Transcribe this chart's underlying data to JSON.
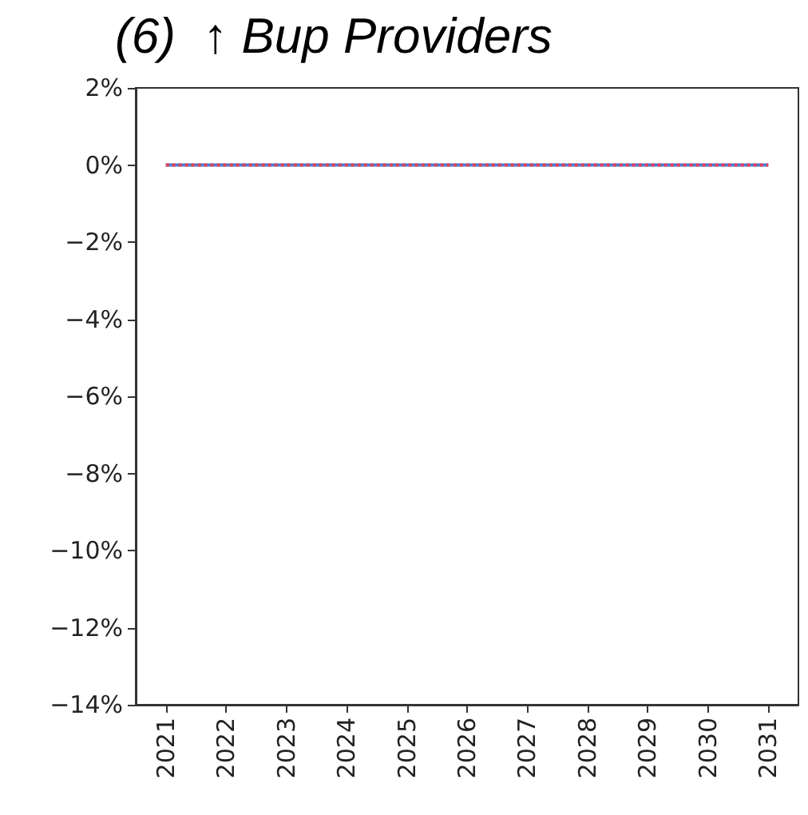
{
  "chart_data": {
    "type": "line",
    "title": "(6)  ↑ Bup Providers",
    "categories": [
      "2021",
      "2022",
      "2023",
      "2024",
      "2025",
      "2026",
      "2027",
      "2028",
      "2029",
      "2030",
      "2031"
    ],
    "series": [
      {
        "color": "#4a7bd0",
        "line_style": "solid",
        "values": [
          0,
          0,
          0,
          0,
          0,
          0,
          0,
          0,
          0,
          0,
          0
        ]
      },
      {
        "color": "#e2425a",
        "line_style": "dotted",
        "values": [
          0,
          0,
          0,
          0,
          0,
          0,
          0,
          0,
          0,
          0,
          0
        ]
      }
    ],
    "ylim": [
      -14,
      2
    ],
    "yticks": [
      {
        "value": -14,
        "label": "−14%"
      },
      {
        "value": -12,
        "label": "−12%"
      },
      {
        "value": -10,
        "label": "−10%"
      },
      {
        "value": -8,
        "label": "−8%"
      },
      {
        "value": -6,
        "label": "−6%"
      },
      {
        "value": -4,
        "label": "−4%"
      },
      {
        "value": -2,
        "label": "−2%"
      },
      {
        "value": 0,
        "label": "0%"
      },
      {
        "value": 2,
        "label": "2%"
      }
    ],
    "marker": "none"
  }
}
